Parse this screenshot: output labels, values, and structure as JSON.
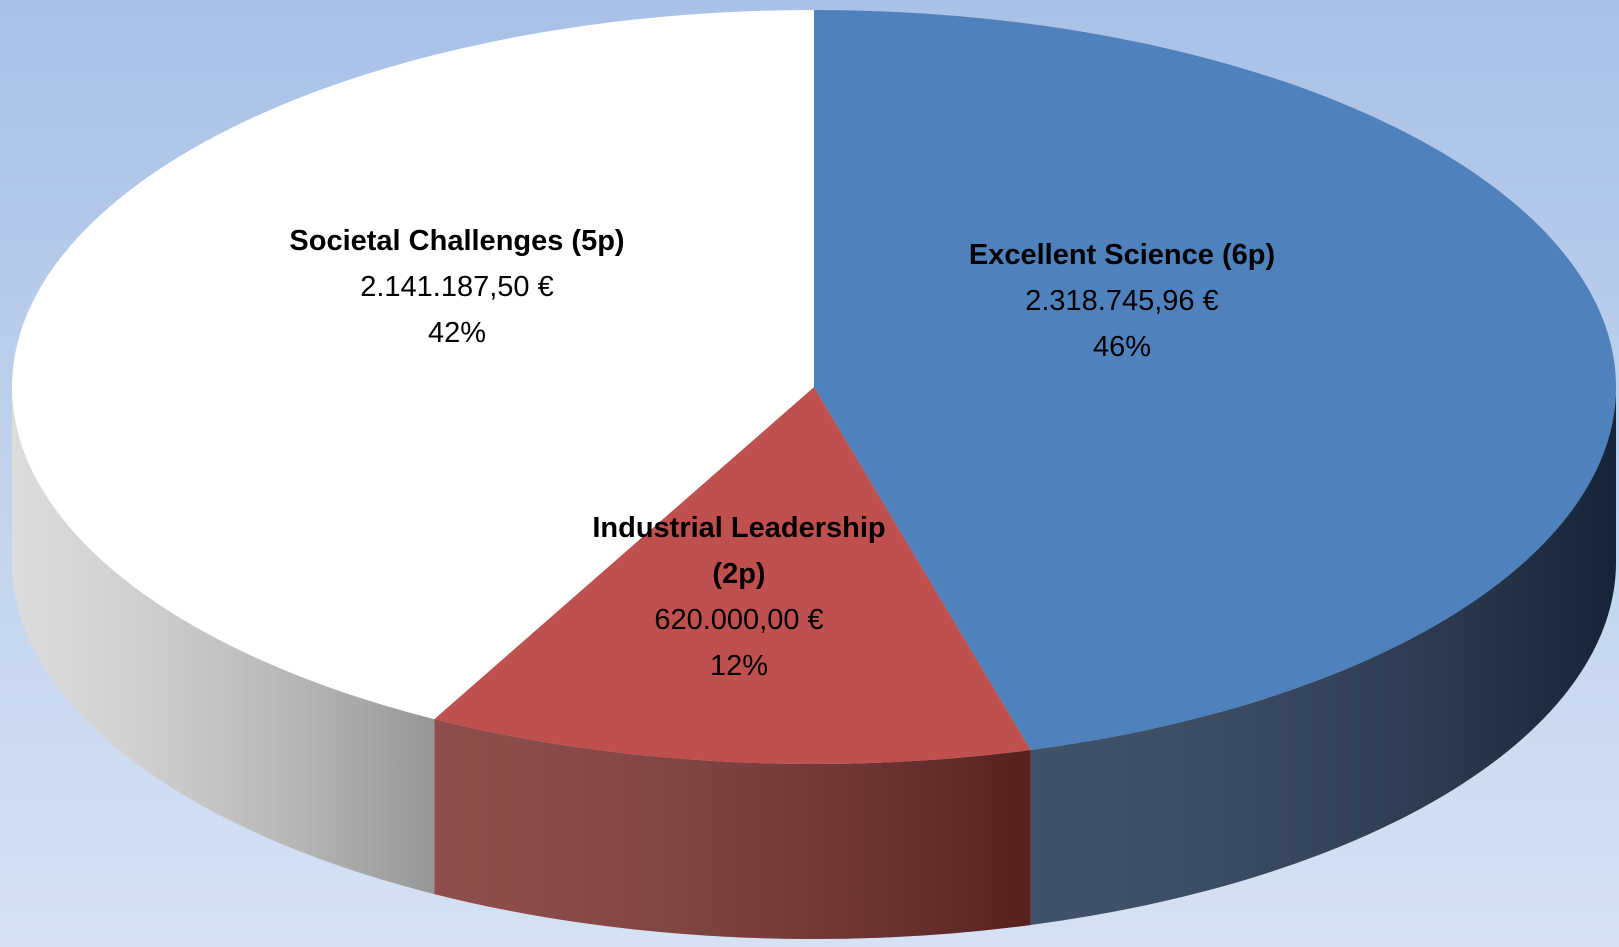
{
  "chart_data": {
    "type": "pie",
    "categories": [
      "Excellent Science (6p)",
      "Industrial Leadership (2p)",
      "Societal Challenges (5p)"
    ],
    "values": [
      2318745.96,
      620000.0,
      2141187.5
    ],
    "value_labels": [
      "2.318.745,96 €",
      "620.000,00 €",
      "2.141.187,50 €"
    ],
    "percents": [
      46,
      12,
      42
    ],
    "percent_labels": [
      "46%",
      "12%",
      "42%"
    ],
    "colors": [
      "#4f81bd",
      "#c0504d",
      "#ffffff"
    ],
    "side_colors": [
      "#1f3350",
      "#7a2e2c",
      "#d6d6d6"
    ]
  }
}
